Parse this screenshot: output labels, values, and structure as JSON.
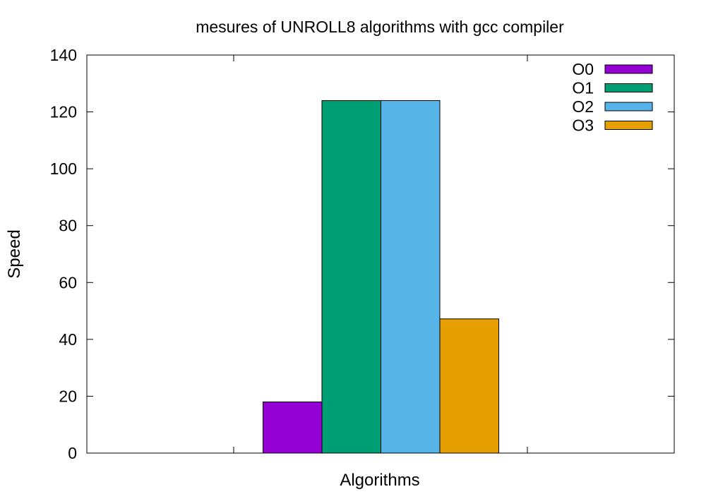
{
  "chart_data": {
    "type": "bar",
    "title": "mesures of UNROLL8 algorithms with gcc compiler",
    "xlabel": "Algorithms",
    "ylabel": "Speed",
    "ylim": [
      0,
      140
    ],
    "yticks": [
      0,
      20,
      40,
      60,
      80,
      100,
      120,
      140
    ],
    "categories": [
      ""
    ],
    "legend_position": "top-right",
    "grid": false,
    "series": [
      {
        "name": "O0",
        "values": [
          18
        ],
        "color": "#9400d3"
      },
      {
        "name": "O1",
        "values": [
          124
        ],
        "color": "#009e73"
      },
      {
        "name": "O2",
        "values": [
          124
        ],
        "color": "#56b4e9"
      },
      {
        "name": "O3",
        "values": [
          47.2
        ],
        "color": "#e69f00"
      }
    ]
  }
}
